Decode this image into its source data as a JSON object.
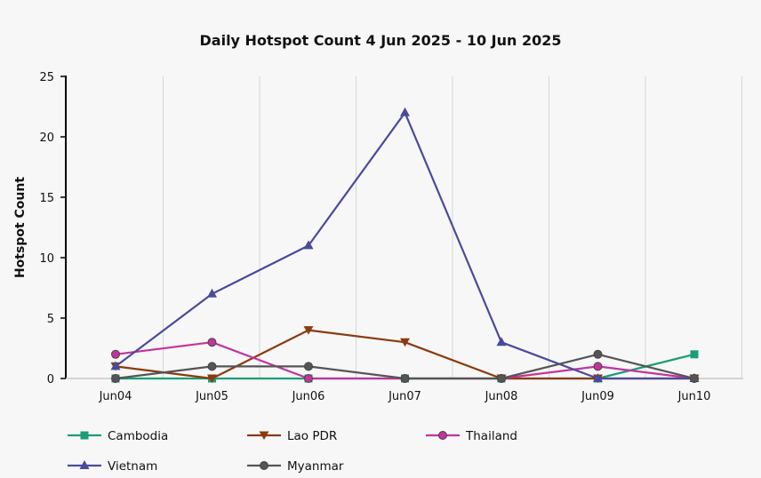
{
  "chart_data": {
    "type": "line",
    "title": "Daily Hotspot Count 4 Jun 2025 - 10 Jun 2025",
    "xlabel": "",
    "ylabel": "Hotspot Count",
    "categories": [
      "Jun04",
      "Jun05",
      "Jun06",
      "Jun07",
      "Jun08",
      "Jun09",
      "Jun10"
    ],
    "ylim": [
      0,
      25
    ],
    "yticks": [
      0,
      5,
      10,
      15,
      20,
      25
    ],
    "grid": "vertical",
    "legend_position": "bottom",
    "series": [
      {
        "name": "Cambodia",
        "color": "#1a9e77",
        "marker": "square",
        "values": [
          0,
          0,
          0,
          0,
          0,
          0,
          2
        ]
      },
      {
        "name": "Lao PDR",
        "color": "#8c3a0e",
        "marker": "triangle-down",
        "values": [
          1,
          0,
          4,
          3,
          0,
          0,
          0
        ]
      },
      {
        "name": "Thailand",
        "color": "#c2349c",
        "marker": "circle",
        "values": [
          2,
          3,
          0,
          0,
          0,
          1,
          0
        ]
      },
      {
        "name": "Vietnam",
        "color": "#4a4a9c",
        "marker": "triangle-up",
        "values": [
          1,
          7,
          11,
          22,
          3,
          0,
          0
        ]
      },
      {
        "name": "Myanmar",
        "color": "#555555",
        "marker": "circle",
        "values": [
          0,
          1,
          1,
          0,
          0,
          2,
          0
        ]
      }
    ]
  }
}
